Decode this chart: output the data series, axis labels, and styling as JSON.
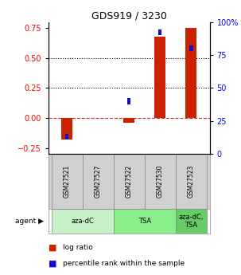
{
  "title": "GDS919 / 3230",
  "samples": [
    "GSM27521",
    "GSM27527",
    "GSM27522",
    "GSM27530",
    "GSM27523"
  ],
  "log_ratio": [
    -0.18,
    0.0,
    -0.04,
    0.68,
    0.75
  ],
  "percentile_rank_pct": [
    13,
    0,
    40,
    92,
    80
  ],
  "agents": [
    {
      "label": "aza-dC",
      "span": [
        0,
        2
      ]
    },
    {
      "label": "TSA",
      "span": [
        2,
        4
      ]
    },
    {
      "label": "aza-dC,\nTSA",
      "span": [
        4,
        5
      ]
    }
  ],
  "agent_colors": [
    "#c8f0c8",
    "#88ee88",
    "#66cc66"
  ],
  "bar_color_red": "#cc2200",
  "bar_color_blue": "#1111cc",
  "left_ylim": [
    -0.3,
    0.8
  ],
  "right_ylim": [
    0,
    100
  ],
  "left_yticks": [
    -0.25,
    0.0,
    0.25,
    0.5,
    0.75
  ],
  "right_yticks": [
    0,
    25,
    50,
    75,
    100
  ],
  "right_yticklabels": [
    "0",
    "25",
    "50",
    "75",
    "100%"
  ],
  "hlines": [
    0.25,
    0.5
  ],
  "hline_zero": 0.0,
  "bar_width": 0.35,
  "blue_square_size": 0.12,
  "legend_red": "log ratio",
  "legend_blue": "percentile rank within the sample",
  "sample_row_color": "#d0d0d0",
  "cell_edge_color": "#888888"
}
